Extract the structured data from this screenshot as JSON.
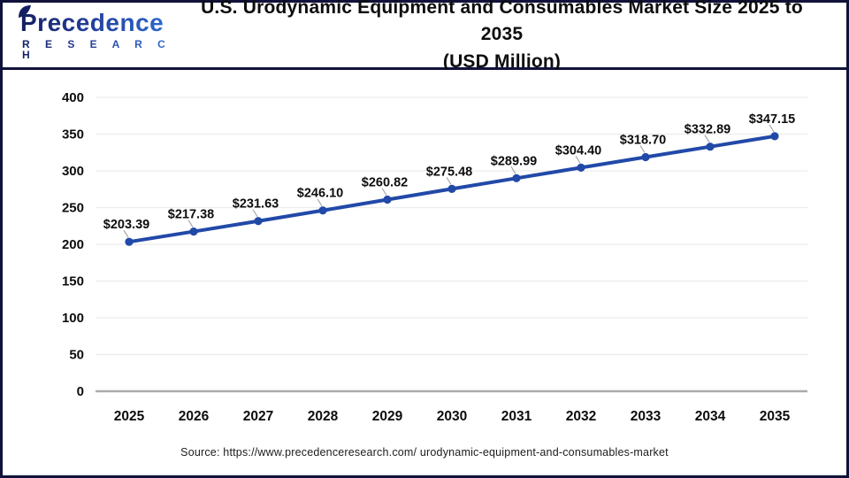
{
  "header": {
    "logo_brand": "Precedence",
    "logo_sub": "R E S E A R C H",
    "title_line1": "U.S. Urodynamic Equipment and Consumables Market Size 2025 to 2035",
    "title_line2": "(USD Million)"
  },
  "chart_data": {
    "type": "line",
    "title": "U.S. Urodynamic Equipment and Consumables Market Size 2025 to 2035 (USD Million)",
    "categories": [
      "2025",
      "2026",
      "2027",
      "2028",
      "2029",
      "2030",
      "2031",
      "2032",
      "2033",
      "2034",
      "2035"
    ],
    "series": [
      {
        "name": "U.S. Urodynamic Equipment and Consumables Market Size (USD Million)",
        "values": [
          203.39,
          217.38,
          231.63,
          246.1,
          260.82,
          275.48,
          289.99,
          304.4,
          318.7,
          332.89,
          347.15
        ]
      }
    ],
    "data_labels": [
      "$203.39",
      "$217.38",
      "$231.63",
      "$246.10",
      "$260.82",
      "$275.48",
      "$289.99",
      "$304.40",
      "$318.70",
      "$332.89",
      "$347.15"
    ],
    "value_prefix": "$",
    "xlabel": "",
    "ylabel": "",
    "ylim": [
      0,
      400
    ],
    "yticks": [
      0,
      50,
      100,
      150,
      200,
      250,
      300,
      350,
      400
    ],
    "grid": true,
    "legend": "none",
    "line_color": "#2149a8",
    "marker": "circle"
  },
  "footer": {
    "source": "Source: https://www.precedenceresearch.com/ urodynamic-equipment-and-consumables-market"
  },
  "colors": {
    "accent_blue": "#2149a8",
    "navy_border": "#10123a",
    "gridline": "#ececec",
    "axis_line": "#ababab",
    "label_text": "#0d0d0d",
    "leader_line": "#9a9a9a"
  }
}
